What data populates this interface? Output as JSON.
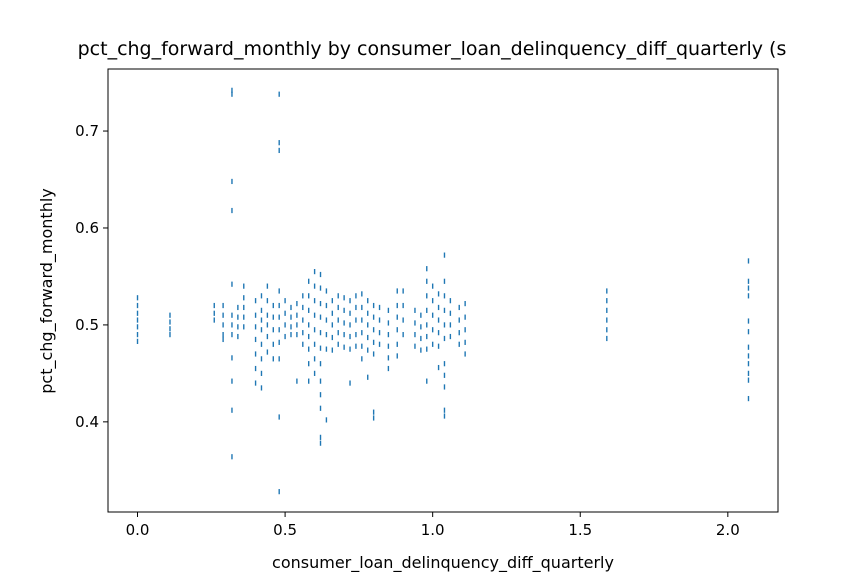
{
  "chart_data": {
    "type": "scatter",
    "title": "pct_chg_forward_monthly by consumer_loan_delinquency_diff_quarterly (s",
    "xlabel": "consumer_loan_delinquency_diff_quarterly",
    "ylabel": "pct_chg_forward_monthly",
    "xlim": [
      -0.1,
      2.17
    ],
    "ylim": [
      0.307,
      0.764
    ],
    "xticks": [
      0.0,
      0.5,
      1.0,
      1.5,
      2.0
    ],
    "xtick_labels": [
      "0.0",
      "0.5",
      "1.0",
      "1.5",
      "2.0"
    ],
    "yticks": [
      0.4,
      0.5,
      0.6,
      0.7
    ],
    "ytick_labels": [
      "0.4",
      "0.5",
      "0.6",
      "0.7"
    ],
    "grid": false,
    "marker": "vertical-tick",
    "color": "#1f77b4",
    "points": [
      [
        0.0,
        0.528
      ],
      [
        0.0,
        0.52
      ],
      [
        0.0,
        0.512
      ],
      [
        0.0,
        0.505
      ],
      [
        0.0,
        0.498
      ],
      [
        0.0,
        0.49
      ],
      [
        0.0,
        0.483
      ],
      [
        0.11,
        0.51
      ],
      [
        0.11,
        0.503
      ],
      [
        0.11,
        0.496
      ],
      [
        0.11,
        0.49
      ],
      [
        0.26,
        0.52
      ],
      [
        0.26,
        0.512
      ],
      [
        0.26,
        0.505
      ],
      [
        0.29,
        0.52
      ],
      [
        0.29,
        0.51
      ],
      [
        0.29,
        0.5
      ],
      [
        0.29,
        0.49
      ],
      [
        0.29,
        0.485
      ],
      [
        0.32,
        0.742
      ],
      [
        0.32,
        0.738
      ],
      [
        0.32,
        0.648
      ],
      [
        0.32,
        0.618
      ],
      [
        0.32,
        0.542
      ],
      [
        0.32,
        0.51
      ],
      [
        0.32,
        0.5
      ],
      [
        0.32,
        0.49
      ],
      [
        0.32,
        0.466
      ],
      [
        0.32,
        0.442
      ],
      [
        0.32,
        0.412
      ],
      [
        0.32,
        0.364
      ],
      [
        0.34,
        0.518
      ],
      [
        0.34,
        0.508
      ],
      [
        0.34,
        0.498
      ],
      [
        0.34,
        0.488
      ],
      [
        0.36,
        0.54
      ],
      [
        0.36,
        0.528
      ],
      [
        0.36,
        0.518
      ],
      [
        0.36,
        0.508
      ],
      [
        0.36,
        0.498
      ],
      [
        0.4,
        0.525
      ],
      [
        0.4,
        0.51
      ],
      [
        0.4,
        0.498
      ],
      [
        0.4,
        0.485
      ],
      [
        0.4,
        0.47
      ],
      [
        0.4,
        0.455
      ],
      [
        0.4,
        0.44
      ],
      [
        0.42,
        0.53
      ],
      [
        0.42,
        0.515
      ],
      [
        0.42,
        0.505
      ],
      [
        0.42,
        0.495
      ],
      [
        0.42,
        0.48
      ],
      [
        0.42,
        0.465
      ],
      [
        0.42,
        0.45
      ],
      [
        0.42,
        0.435
      ],
      [
        0.44,
        0.54
      ],
      [
        0.44,
        0.525
      ],
      [
        0.44,
        0.51
      ],
      [
        0.44,
        0.5
      ],
      [
        0.44,
        0.488
      ],
      [
        0.44,
        0.472
      ],
      [
        0.46,
        0.52
      ],
      [
        0.46,
        0.508
      ],
      [
        0.46,
        0.495
      ],
      [
        0.46,
        0.48
      ],
      [
        0.46,
        0.465
      ],
      [
        0.48,
        0.738
      ],
      [
        0.48,
        0.688
      ],
      [
        0.48,
        0.68
      ],
      [
        0.48,
        0.535
      ],
      [
        0.48,
        0.52
      ],
      [
        0.48,
        0.508
      ],
      [
        0.48,
        0.495
      ],
      [
        0.48,
        0.482
      ],
      [
        0.48,
        0.465
      ],
      [
        0.48,
        0.405
      ],
      [
        0.48,
        0.328
      ],
      [
        0.5,
        0.525
      ],
      [
        0.5,
        0.512
      ],
      [
        0.5,
        0.5
      ],
      [
        0.5,
        0.488
      ],
      [
        0.52,
        0.518
      ],
      [
        0.52,
        0.508
      ],
      [
        0.52,
        0.498
      ],
      [
        0.52,
        0.49
      ],
      [
        0.54,
        0.522
      ],
      [
        0.54,
        0.51
      ],
      [
        0.54,
        0.5
      ],
      [
        0.54,
        0.49
      ],
      [
        0.54,
        0.442
      ],
      [
        0.56,
        0.53
      ],
      [
        0.56,
        0.518
      ],
      [
        0.56,
        0.505
      ],
      [
        0.56,
        0.492
      ],
      [
        0.56,
        0.48
      ],
      [
        0.58,
        0.545
      ],
      [
        0.58,
        0.53
      ],
      [
        0.58,
        0.515
      ],
      [
        0.58,
        0.5
      ],
      [
        0.58,
        0.488
      ],
      [
        0.58,
        0.475
      ],
      [
        0.58,
        0.46
      ],
      [
        0.58,
        0.442
      ],
      [
        0.6,
        0.555
      ],
      [
        0.6,
        0.54
      ],
      [
        0.6,
        0.525
      ],
      [
        0.6,
        0.51
      ],
      [
        0.6,
        0.495
      ],
      [
        0.6,
        0.48
      ],
      [
        0.6,
        0.465
      ],
      [
        0.6,
        0.45
      ],
      [
        0.62,
        0.552
      ],
      [
        0.62,
        0.538
      ],
      [
        0.62,
        0.522
      ],
      [
        0.62,
        0.508
      ],
      [
        0.62,
        0.492
      ],
      [
        0.62,
        0.476
      ],
      [
        0.62,
        0.46
      ],
      [
        0.62,
        0.442
      ],
      [
        0.62,
        0.428
      ],
      [
        0.62,
        0.414
      ],
      [
        0.62,
        0.384
      ],
      [
        0.62,
        0.378
      ],
      [
        0.64,
        0.535
      ],
      [
        0.64,
        0.52
      ],
      [
        0.64,
        0.505
      ],
      [
        0.64,
        0.49
      ],
      [
        0.64,
        0.475
      ],
      [
        0.64,
        0.402
      ],
      [
        0.66,
        0.525
      ],
      [
        0.66,
        0.512
      ],
      [
        0.66,
        0.5
      ],
      [
        0.66,
        0.487
      ],
      [
        0.66,
        0.474
      ],
      [
        0.68,
        0.53
      ],
      [
        0.68,
        0.518
      ],
      [
        0.68,
        0.505
      ],
      [
        0.68,
        0.492
      ],
      [
        0.68,
        0.48
      ],
      [
        0.7,
        0.528
      ],
      [
        0.7,
        0.515
      ],
      [
        0.7,
        0.502
      ],
      [
        0.7,
        0.49
      ],
      [
        0.7,
        0.477
      ],
      [
        0.72,
        0.525
      ],
      [
        0.72,
        0.512
      ],
      [
        0.72,
        0.5
      ],
      [
        0.72,
        0.488
      ],
      [
        0.72,
        0.475
      ],
      [
        0.72,
        0.44
      ],
      [
        0.74,
        0.53
      ],
      [
        0.74,
        0.518
      ],
      [
        0.74,
        0.505
      ],
      [
        0.74,
        0.49
      ],
      [
        0.74,
        0.478
      ],
      [
        0.76,
        0.532
      ],
      [
        0.76,
        0.518
      ],
      [
        0.76,
        0.505
      ],
      [
        0.76,
        0.492
      ],
      [
        0.76,
        0.478
      ],
      [
        0.76,
        0.465
      ],
      [
        0.78,
        0.525
      ],
      [
        0.78,
        0.512
      ],
      [
        0.78,
        0.5
      ],
      [
        0.78,
        0.487
      ],
      [
        0.78,
        0.474
      ],
      [
        0.78,
        0.446
      ],
      [
        0.8,
        0.52
      ],
      [
        0.8,
        0.508
      ],
      [
        0.8,
        0.495
      ],
      [
        0.8,
        0.482
      ],
      [
        0.8,
        0.47
      ],
      [
        0.8,
        0.41
      ],
      [
        0.8,
        0.404
      ],
      [
        0.82,
        0.518
      ],
      [
        0.82,
        0.505
      ],
      [
        0.82,
        0.492
      ],
      [
        0.82,
        0.48
      ],
      [
        0.85,
        0.515
      ],
      [
        0.85,
        0.502
      ],
      [
        0.85,
        0.49
      ],
      [
        0.85,
        0.478
      ],
      [
        0.85,
        0.466
      ],
      [
        0.85,
        0.455
      ],
      [
        0.88,
        0.535
      ],
      [
        0.88,
        0.52
      ],
      [
        0.88,
        0.508
      ],
      [
        0.88,
        0.495
      ],
      [
        0.88,
        0.48
      ],
      [
        0.88,
        0.468
      ],
      [
        0.9,
        0.535
      ],
      [
        0.9,
        0.52
      ],
      [
        0.9,
        0.505
      ],
      [
        0.9,
        0.49
      ],
      [
        0.94,
        0.515
      ],
      [
        0.94,
        0.502
      ],
      [
        0.94,
        0.49
      ],
      [
        0.94,
        0.478
      ],
      [
        0.96,
        0.51
      ],
      [
        0.96,
        0.498
      ],
      [
        0.96,
        0.486
      ],
      [
        0.96,
        0.474
      ],
      [
        0.98,
        0.558
      ],
      [
        0.98,
        0.545
      ],
      [
        0.98,
        0.53
      ],
      [
        0.98,
        0.515
      ],
      [
        0.98,
        0.5
      ],
      [
        0.98,
        0.488
      ],
      [
        0.98,
        0.475
      ],
      [
        0.98,
        0.442
      ],
      [
        1.0,
        0.54
      ],
      [
        1.0,
        0.525
      ],
      [
        1.0,
        0.51
      ],
      [
        1.0,
        0.495
      ],
      [
        1.0,
        0.48
      ],
      [
        1.02,
        0.532
      ],
      [
        1.02,
        0.518
      ],
      [
        1.02,
        0.505
      ],
      [
        1.02,
        0.492
      ],
      [
        1.02,
        0.478
      ],
      [
        1.02,
        0.456
      ],
      [
        1.04,
        0.572
      ],
      [
        1.04,
        0.545
      ],
      [
        1.04,
        0.53
      ],
      [
        1.04,
        0.515
      ],
      [
        1.04,
        0.5
      ],
      [
        1.04,
        0.486
      ],
      [
        1.04,
        0.46
      ],
      [
        1.04,
        0.448
      ],
      [
        1.04,
        0.436
      ],
      [
        1.04,
        0.412
      ],
      [
        1.04,
        0.406
      ],
      [
        1.06,
        0.525
      ],
      [
        1.06,
        0.512
      ],
      [
        1.06,
        0.5
      ],
      [
        1.06,
        0.488
      ],
      [
        1.09,
        0.518
      ],
      [
        1.09,
        0.505
      ],
      [
        1.09,
        0.492
      ],
      [
        1.09,
        0.48
      ],
      [
        1.11,
        0.522
      ],
      [
        1.11,
        0.508
      ],
      [
        1.11,
        0.495
      ],
      [
        1.11,
        0.482
      ],
      [
        1.11,
        0.47
      ],
      [
        1.59,
        0.535
      ],
      [
        1.59,
        0.525
      ],
      [
        1.59,
        0.515
      ],
      [
        1.59,
        0.505
      ],
      [
        1.59,
        0.495
      ],
      [
        1.59,
        0.486
      ],
      [
        2.07,
        0.566
      ],
      [
        2.07,
        0.545
      ],
      [
        2.07,
        0.538
      ],
      [
        2.07,
        0.53
      ],
      [
        2.07,
        0.504
      ],
      [
        2.07,
        0.493
      ],
      [
        2.07,
        0.477
      ],
      [
        2.07,
        0.468
      ],
      [
        2.07,
        0.46
      ],
      [
        2.07,
        0.45
      ],
      [
        2.07,
        0.443
      ],
      [
        2.07,
        0.424
      ]
    ]
  }
}
